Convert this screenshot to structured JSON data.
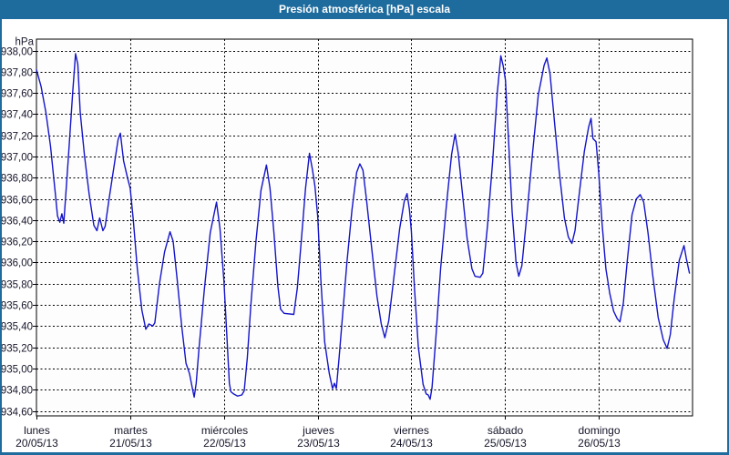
{
  "window": {
    "title": "Presión atmosférica [hPa] escala"
  },
  "colors": {
    "titlebar": "#1e6b9d",
    "frame": "#1e6b9d",
    "series": "#1414c8",
    "grid": "#000000",
    "axis": "#000000",
    "plot_bg": "#fdfdfd",
    "text": "#15152a"
  },
  "chart_data": {
    "type": "line",
    "title": "Presión atmosférica [hPa] escala",
    "ylabel": "hPa",
    "grid": "dashed",
    "legend_position": "none",
    "y_axis": {
      "min": 934.6,
      "max": 938.0,
      "step": 0.2,
      "tick_labels": [
        "938,00",
        "937,80",
        "937,60",
        "937,40",
        "937,20",
        "937,00",
        "936,80",
        "936,60",
        "936,40",
        "936,20",
        "936,00",
        "935,80",
        "935,60",
        "935,40",
        "935,20",
        "935,00",
        "934,80",
        "934,60"
      ]
    },
    "x_axis": {
      "unit": "hours",
      "span_hours": 168,
      "day_width_hours": 24,
      "days": [
        {
          "name": "lunes",
          "date": "20/05/13"
        },
        {
          "name": "martes",
          "date": "21/05/13"
        },
        {
          "name": "miércoles",
          "date": "22/05/13"
        },
        {
          "name": "jueves",
          "date": "23/05/13"
        },
        {
          "name": "viernes",
          "date": "24/05/13"
        },
        {
          "name": "sábado",
          "date": "25/05/13"
        },
        {
          "name": "domingo",
          "date": "26/05/13"
        }
      ]
    },
    "series": [
      {
        "name": "presión atmosférica",
        "color": "#1414c8",
        "points": [
          [
            0,
            937.82
          ],
          [
            1.2,
            937.66
          ],
          [
            2.4,
            937.42
          ],
          [
            3.6,
            937.1
          ],
          [
            4.8,
            936.66
          ],
          [
            5.4,
            936.44
          ],
          [
            6.0,
            936.38
          ],
          [
            6.5,
            936.46
          ],
          [
            7.0,
            936.37
          ],
          [
            8.2,
            937.0
          ],
          [
            9.3,
            937.62
          ],
          [
            10.0,
            937.97
          ],
          [
            10.6,
            937.87
          ],
          [
            11.2,
            937.42
          ],
          [
            12.3,
            937.01
          ],
          [
            13.5,
            936.64
          ],
          [
            14.7,
            936.35
          ],
          [
            15.5,
            936.3
          ],
          [
            16.2,
            936.42
          ],
          [
            17.0,
            936.3
          ],
          [
            17.6,
            936.34
          ],
          [
            18.6,
            936.6
          ],
          [
            20.0,
            936.94
          ],
          [
            20.9,
            937.16
          ],
          [
            21.5,
            937.22
          ],
          [
            22.3,
            936.96
          ],
          [
            23.3,
            936.8
          ],
          [
            24.0,
            936.7
          ],
          [
            24.8,
            936.4
          ],
          [
            25.8,
            935.95
          ],
          [
            27.0,
            935.55
          ],
          [
            28.0,
            935.37
          ],
          [
            28.8,
            935.42
          ],
          [
            29.8,
            935.4
          ],
          [
            30.3,
            935.43
          ],
          [
            31.5,
            935.8
          ],
          [
            32.8,
            936.1
          ],
          [
            34.2,
            936.29
          ],
          [
            35.0,
            936.2
          ],
          [
            36.0,
            935.85
          ],
          [
            37.2,
            935.4
          ],
          [
            38.3,
            935.05
          ],
          [
            39.2,
            934.95
          ],
          [
            40.0,
            934.8
          ],
          [
            40.4,
            934.73
          ],
          [
            40.9,
            934.86
          ],
          [
            41.6,
            935.18
          ],
          [
            43.0,
            935.75
          ],
          [
            44.5,
            936.28
          ],
          [
            46.1,
            936.57
          ],
          [
            47.0,
            936.32
          ],
          [
            48.0,
            935.83
          ],
          [
            48.7,
            935.35
          ],
          [
            49.4,
            934.86
          ],
          [
            49.8,
            934.78
          ],
          [
            50.5,
            934.76
          ],
          [
            51.5,
            934.74
          ],
          [
            52.6,
            934.75
          ],
          [
            53.2,
            934.79
          ],
          [
            54.0,
            935.1
          ],
          [
            54.9,
            935.6
          ],
          [
            56.2,
            936.2
          ],
          [
            57.5,
            936.68
          ],
          [
            58.9,
            936.92
          ],
          [
            59.8,
            936.7
          ],
          [
            60.8,
            936.28
          ],
          [
            61.8,
            935.78
          ],
          [
            62.5,
            935.56
          ],
          [
            63.4,
            935.52
          ],
          [
            65.9,
            935.51
          ],
          [
            66.8,
            935.76
          ],
          [
            67.8,
            936.2
          ],
          [
            68.9,
            936.7
          ],
          [
            69.9,
            937.03
          ],
          [
            70.7,
            936.87
          ],
          [
            71.3,
            936.72
          ],
          [
            72.0,
            936.44
          ],
          [
            72.8,
            935.85
          ],
          [
            73.8,
            935.25
          ],
          [
            75.0,
            934.95
          ],
          [
            75.8,
            934.81
          ],
          [
            76.3,
            934.86
          ],
          [
            76.8,
            934.81
          ],
          [
            77.5,
            935.1
          ],
          [
            78.5,
            935.55
          ],
          [
            79.5,
            936.0
          ],
          [
            80.8,
            936.5
          ],
          [
            82.0,
            936.85
          ],
          [
            82.8,
            936.93
          ],
          [
            83.6,
            936.87
          ],
          [
            84.5,
            936.6
          ],
          [
            85.8,
            936.15
          ],
          [
            87.2,
            935.68
          ],
          [
            88.3,
            935.42
          ],
          [
            89.2,
            935.29
          ],
          [
            90.2,
            935.45
          ],
          [
            91.5,
            935.85
          ],
          [
            93.0,
            936.32
          ],
          [
            94.2,
            936.58
          ],
          [
            94.9,
            936.65
          ],
          [
            95.5,
            936.5
          ],
          [
            96.0,
            936.3
          ],
          [
            96.8,
            935.75
          ],
          [
            97.8,
            935.2
          ],
          [
            99.0,
            934.85
          ],
          [
            99.8,
            934.76
          ],
          [
            100.3,
            934.75
          ],
          [
            100.8,
            934.71
          ],
          [
            101.3,
            934.82
          ],
          [
            102.3,
            935.3
          ],
          [
            103.5,
            935.95
          ],
          [
            105.0,
            936.55
          ],
          [
            106.3,
            937.02
          ],
          [
            107.2,
            937.21
          ],
          [
            108.0,
            937.03
          ],
          [
            109.0,
            936.68
          ],
          [
            110.3,
            936.22
          ],
          [
            111.5,
            935.94
          ],
          [
            112.3,
            935.87
          ],
          [
            113.6,
            935.86
          ],
          [
            114.3,
            935.9
          ],
          [
            115.5,
            936.35
          ],
          [
            116.8,
            936.95
          ],
          [
            118.0,
            937.6
          ],
          [
            118.9,
            937.95
          ],
          [
            119.5,
            937.86
          ],
          [
            120.1,
            937.72
          ],
          [
            120.9,
            937.15
          ],
          [
            121.8,
            936.48
          ],
          [
            122.8,
            936.0
          ],
          [
            123.5,
            935.87
          ],
          [
            124.3,
            935.97
          ],
          [
            125.5,
            936.42
          ],
          [
            127.0,
            937.02
          ],
          [
            128.5,
            937.58
          ],
          [
            130.0,
            937.86
          ],
          [
            130.7,
            937.93
          ],
          [
            131.5,
            937.78
          ],
          [
            132.5,
            937.38
          ],
          [
            133.8,
            936.88
          ],
          [
            135.2,
            936.42
          ],
          [
            136.2,
            936.24
          ],
          [
            137.1,
            936.18
          ],
          [
            137.9,
            936.3
          ],
          [
            139.0,
            936.65
          ],
          [
            140.3,
            937.05
          ],
          [
            141.4,
            937.28
          ],
          [
            142.0,
            937.36
          ],
          [
            142.5,
            937.17
          ],
          [
            143.3,
            937.14
          ],
          [
            144.0,
            936.84
          ],
          [
            144.8,
            936.38
          ],
          [
            145.8,
            935.94
          ],
          [
            146.8,
            935.71
          ],
          [
            147.8,
            935.54
          ],
          [
            148.7,
            935.47
          ],
          [
            149.4,
            935.44
          ],
          [
            150.3,
            935.62
          ],
          [
            151.3,
            936.02
          ],
          [
            152.5,
            936.45
          ],
          [
            153.6,
            936.6
          ],
          [
            154.6,
            936.64
          ],
          [
            155.5,
            936.57
          ],
          [
            156.6,
            936.28
          ],
          [
            157.8,
            935.88
          ],
          [
            159.2,
            935.48
          ],
          [
            160.5,
            935.27
          ],
          [
            161.5,
            935.19
          ],
          [
            162.3,
            935.32
          ],
          [
            163.3,
            935.66
          ],
          [
            164.6,
            936.02
          ],
          [
            165.8,
            936.16
          ],
          [
            166.4,
            936.04
          ],
          [
            167.2,
            935.9
          ]
        ]
      }
    ]
  }
}
